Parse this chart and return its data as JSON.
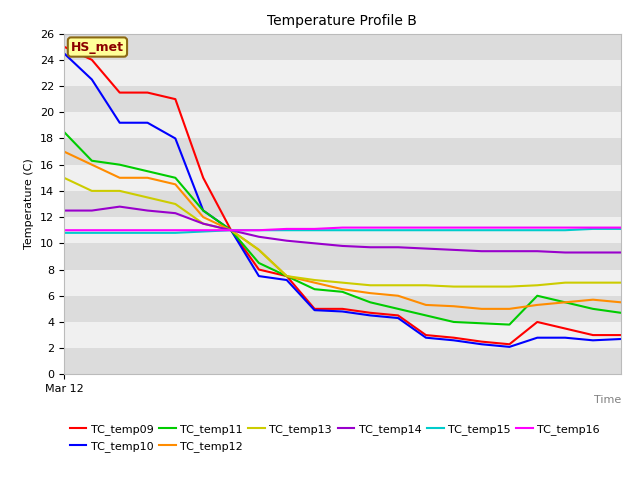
{
  "title": "Temperature Profile B",
  "xlabel": "Time",
  "ylabel": "Temperature (C)",
  "ylim": [
    0,
    26
  ],
  "yticks": [
    0,
    2,
    4,
    6,
    8,
    10,
    12,
    14,
    16,
    18,
    20,
    22,
    24,
    26
  ],
  "x_label_text": "Mar 12",
  "annotation_text": "HS_met",
  "annotation_color": "#8B0000",
  "annotation_bg": "#FFFF99",
  "plot_bg_light": "#DCDCDC",
  "plot_bg_dark": "#F0F0F0",
  "series": [
    {
      "name": "TC_temp09",
      "color": "#FF0000",
      "x": [
        0,
        1,
        2,
        3,
        4,
        5,
        6,
        7,
        8,
        9,
        10,
        11,
        12,
        13,
        14,
        15,
        16,
        17,
        18,
        19,
        20
      ],
      "y": [
        25.0,
        24.0,
        21.5,
        21.5,
        21.0,
        15.0,
        11.0,
        8.0,
        7.5,
        5.0,
        5.0,
        4.7,
        4.5,
        3.0,
        2.8,
        2.5,
        2.3,
        4.0,
        3.5,
        3.0,
        3.0
      ]
    },
    {
      "name": "TC_temp10",
      "color": "#0000FF",
      "x": [
        0,
        1,
        2,
        3,
        4,
        5,
        6,
        7,
        8,
        9,
        10,
        11,
        12,
        13,
        14,
        15,
        16,
        17,
        18,
        19,
        20
      ],
      "y": [
        24.5,
        22.5,
        19.2,
        19.2,
        18.0,
        12.5,
        11.0,
        7.5,
        7.2,
        4.9,
        4.8,
        4.5,
        4.3,
        2.8,
        2.6,
        2.3,
        2.1,
        2.8,
        2.8,
        2.6,
        2.7
      ]
    },
    {
      "name": "TC_temp11",
      "color": "#00CC00",
      "x": [
        0,
        1,
        2,
        3,
        4,
        5,
        6,
        7,
        8,
        9,
        10,
        11,
        12,
        13,
        14,
        15,
        16,
        17,
        18,
        19,
        20
      ],
      "y": [
        18.5,
        16.3,
        16.0,
        15.5,
        15.0,
        12.5,
        11.0,
        8.5,
        7.5,
        6.5,
        6.3,
        5.5,
        5.0,
        4.5,
        4.0,
        3.9,
        3.8,
        6.0,
        5.5,
        5.0,
        4.7
      ]
    },
    {
      "name": "TC_temp12",
      "color": "#FF8C00",
      "x": [
        0,
        1,
        2,
        3,
        4,
        5,
        6,
        7,
        8,
        9,
        10,
        11,
        12,
        13,
        14,
        15,
        16,
        17,
        18,
        19,
        20
      ],
      "y": [
        17.0,
        16.0,
        15.0,
        15.0,
        14.5,
        12.0,
        11.0,
        9.5,
        7.5,
        7.0,
        6.5,
        6.2,
        6.0,
        5.3,
        5.2,
        5.0,
        5.0,
        5.3,
        5.5,
        5.7,
        5.5
      ]
    },
    {
      "name": "TC_temp13",
      "color": "#CCCC00",
      "x": [
        0,
        1,
        2,
        3,
        4,
        5,
        6,
        7,
        8,
        9,
        10,
        11,
        12,
        13,
        14,
        15,
        16,
        17,
        18,
        19,
        20
      ],
      "y": [
        15.0,
        14.0,
        14.0,
        13.5,
        13.0,
        11.5,
        11.0,
        9.5,
        7.5,
        7.2,
        7.0,
        6.8,
        6.8,
        6.8,
        6.7,
        6.7,
        6.7,
        6.8,
        7.0,
        7.0,
        7.0
      ]
    },
    {
      "name": "TC_temp14",
      "color": "#9900CC",
      "x": [
        0,
        1,
        2,
        3,
        4,
        5,
        6,
        7,
        8,
        9,
        10,
        11,
        12,
        13,
        14,
        15,
        16,
        17,
        18,
        19,
        20
      ],
      "y": [
        12.5,
        12.5,
        12.8,
        12.5,
        12.3,
        11.5,
        11.0,
        10.5,
        10.2,
        10.0,
        9.8,
        9.7,
        9.7,
        9.6,
        9.5,
        9.4,
        9.4,
        9.4,
        9.3,
        9.3,
        9.3
      ]
    },
    {
      "name": "TC_temp15",
      "color": "#00CCCC",
      "x": [
        0,
        1,
        2,
        3,
        4,
        5,
        6,
        7,
        8,
        9,
        10,
        11,
        12,
        13,
        14,
        15,
        16,
        17,
        18,
        19,
        20
      ],
      "y": [
        10.8,
        10.8,
        10.8,
        10.8,
        10.8,
        10.9,
        11.0,
        11.0,
        11.0,
        11.0,
        11.0,
        11.0,
        11.0,
        11.0,
        11.0,
        11.0,
        11.0,
        11.0,
        11.0,
        11.1,
        11.1
      ]
    },
    {
      "name": "TC_temp16",
      "color": "#FF00FF",
      "x": [
        0,
        1,
        2,
        3,
        4,
        5,
        6,
        7,
        8,
        9,
        10,
        11,
        12,
        13,
        14,
        15,
        16,
        17,
        18,
        19,
        20
      ],
      "y": [
        11.0,
        11.0,
        11.0,
        11.0,
        11.0,
        11.0,
        11.0,
        11.0,
        11.1,
        11.1,
        11.2,
        11.2,
        11.2,
        11.2,
        11.2,
        11.2,
        11.2,
        11.2,
        11.2,
        11.2,
        11.2
      ]
    }
  ]
}
